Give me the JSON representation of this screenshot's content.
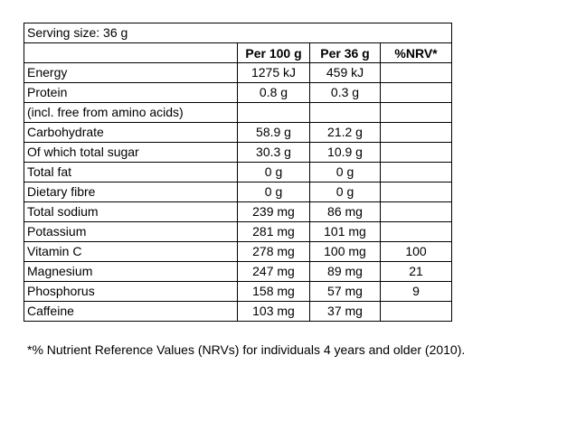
{
  "table": {
    "serving_size": "Serving size: 36 g",
    "columns": [
      "Per 100 g",
      "Per 36 g",
      "%NRV*"
    ],
    "rows": [
      {
        "label": "Energy",
        "per_100g": "1275 kJ",
        "per_36g": "459 kJ"
      },
      {
        "label": "Protein",
        "per_100g": "0.8 g",
        "per_36g": "0.3 g"
      },
      {
        "label": "(incl. free from amino acids)"
      },
      {
        "label": "Carbohydrate",
        "per_100g": "58.9 g",
        "per_36g": "21.2 g"
      },
      {
        "label": "Of which total sugar",
        "per_100g": "30.3 g",
        "per_36g": "10.9 g"
      },
      {
        "label": "Total fat",
        "per_100g": "0 g",
        "per_36g": "0 g"
      },
      {
        "label": "Dietary fibre",
        "per_100g": "0 g",
        "per_36g": "0 g"
      },
      {
        "label": "Total sodium",
        "per_100g": "239 mg",
        "per_36g": "86 mg"
      },
      {
        "label": "Potassium",
        "per_100g": "281 mg",
        "per_36g": "101 mg"
      },
      {
        "label": "Vitamin C",
        "per_100g": "278 mg",
        "per_36g": "100 mg",
        "nrv": "100"
      },
      {
        "label": "Magnesium",
        "per_100g": "247 mg",
        "per_36g": "89 mg",
        "nrv": "21"
      },
      {
        "label": "Phosphorus",
        "per_100g": "158 mg",
        "per_36g": "57 mg",
        "nrv": "9"
      },
      {
        "label": "Caffeine",
        "per_100g": "103 mg",
        "per_36g": "37 mg"
      }
    ]
  },
  "footnote": "*% Nutrient Reference Values (NRVs) for individuals 4 years and older (2010)."
}
